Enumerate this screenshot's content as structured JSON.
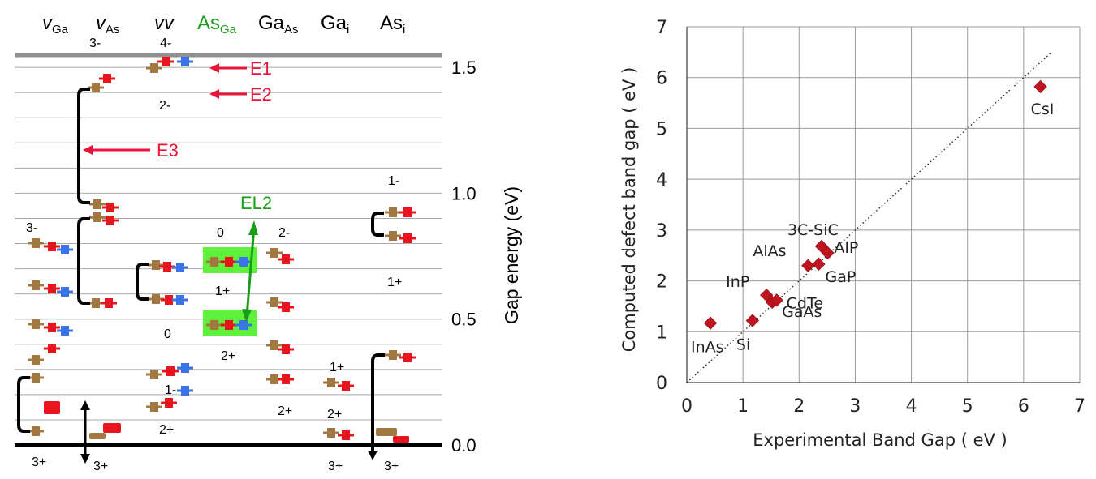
{
  "left_panel": {
    "columns": [
      {
        "main": "v",
        "sub": "Ga",
        "italic": true,
        "color": "#000000"
      },
      {
        "main": "v",
        "sub": "As",
        "italic": true,
        "color": "#000000"
      },
      {
        "main": "vv",
        "sub": "",
        "italic": true,
        "color": "#000000"
      },
      {
        "main": "As",
        "sub": "Ga",
        "italic": false,
        "color": "#1a9e1a"
      },
      {
        "main": "Ga",
        "sub": "As",
        "italic": false,
        "color": "#000000"
      },
      {
        "main": "Ga",
        "sub": "i",
        "italic": false,
        "color": "#000000"
      },
      {
        "main": "As",
        "sub": "i",
        "italic": false,
        "color": "#000000"
      }
    ],
    "y_axis_label": "Gap energy (eV)",
    "y_ticks": [
      "1.5",
      "1.0",
      "0.5",
      "0.0"
    ],
    "arrow_labels": [
      "E1",
      "E2",
      "E3"
    ],
    "el2_label": "EL2",
    "charge_labels": [
      "3-",
      "4-",
      "2-",
      "1-",
      "3-",
      "0",
      "2-",
      "1+",
      "1+",
      "0",
      "2+",
      "1-",
      "1+",
      "2+",
      "2+",
      "2+",
      "3+",
      "3+",
      "3+",
      "3+"
    ],
    "colors": {
      "red": "#e8141e",
      "brown": "#a07840",
      "blue": "#3a73e8",
      "green": "#1a9e1a",
      "highlight": "#5ef03a",
      "arrow": "#e8143a"
    }
  },
  "chart_data": {
    "type": "scatter",
    "title": "",
    "xlabel": "Experimental Band Gap ( eV )",
    "ylabel": "Computed defect band gap ( eV )",
    "xlim": [
      0,
      7
    ],
    "ylim": [
      0,
      7
    ],
    "x_ticks": [
      "0",
      "1",
      "2",
      "3",
      "4",
      "5",
      "6",
      "7"
    ],
    "y_ticks": [
      "0",
      "1",
      "2",
      "3",
      "4",
      "5",
      "6",
      "7"
    ],
    "grid": true,
    "reference_line": {
      "style": "dotted",
      "from": [
        0,
        0
      ],
      "to": [
        6.5,
        6.5
      ]
    },
    "point_color": "#c0141e",
    "points": [
      {
        "label": "InAs",
        "x": 0.42,
        "y": 1.17
      },
      {
        "label": "Si",
        "x": 1.17,
        "y": 1.22
      },
      {
        "label": "GaAs",
        "x": 1.52,
        "y": 1.58
      },
      {
        "label": "CdTe",
        "x": 1.6,
        "y": 1.62
      },
      {
        "label": "InP",
        "x": 1.42,
        "y": 1.72
      },
      {
        "label": "AlAs",
        "x": 2.16,
        "y": 2.3
      },
      {
        "label": "GaP",
        "x": 2.35,
        "y": 2.33
      },
      {
        "label": "AlP",
        "x": 2.51,
        "y": 2.55
      },
      {
        "label": "3C-SiC",
        "x": 2.4,
        "y": 2.68
      },
      {
        "label": "CsI",
        "x": 6.3,
        "y": 5.82
      }
    ]
  }
}
